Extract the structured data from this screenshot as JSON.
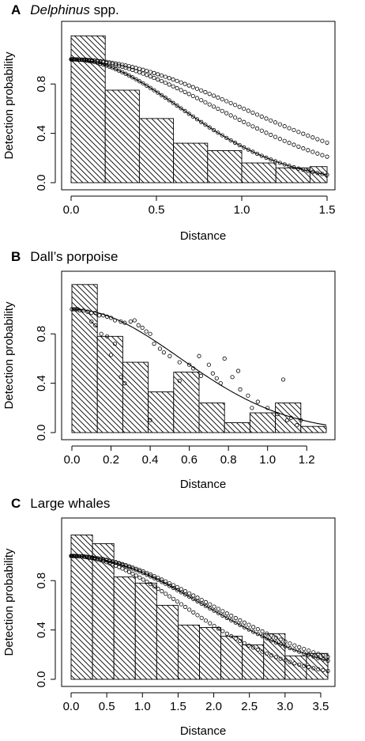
{
  "chart_data": [
    {
      "type": "bar",
      "panel_letter": "A",
      "title": "Delphinus spp.",
      "title_italic_part": "Delphinus",
      "title_rest": " spp.",
      "xlabel": "Distance",
      "ylabel": "Detection probability",
      "xlim": [
        0,
        1.5
      ],
      "ylim": [
        0,
        1.25
      ],
      "xticks": [
        0.0,
        0.5,
        1.0,
        1.5
      ],
      "xtick_labels": [
        "0.0",
        "0.5",
        "1.0",
        "1.5"
      ],
      "yticks": [
        0.0,
        0.4,
        0.8
      ],
      "ytick_labels": [
        "0.0",
        "0.4",
        "0.8"
      ],
      "grid": false,
      "histogram": {
        "bin_width": 0.2,
        "bins": [
          0,
          0.2,
          0.4,
          0.6,
          0.8,
          1.0,
          1.2,
          1.4,
          1.5
        ],
        "values": [
          1.19,
          0.75,
          0.52,
          0.32,
          0.26,
          0.16,
          0.12,
          0.13
        ]
      },
      "fitted_curve": {
        "shape": "half-normal",
        "sigma": 0.64
      },
      "points": {
        "x_max": 1.5,
        "upper_sigma": 1.0,
        "middle_sigma": 0.85,
        "lower_sigma": 0.64
      }
    },
    {
      "type": "bar",
      "panel_letter": "B",
      "title": "Dall’s porpoise",
      "xlabel": "Distance",
      "ylabel": "Detection probability",
      "xlim": [
        0,
        1.3
      ],
      "ylim": [
        0,
        1.25
      ],
      "xticks": [
        0.0,
        0.2,
        0.4,
        0.6,
        0.8,
        1.0,
        1.2
      ],
      "xtick_labels": [
        "0.0",
        "0.2",
        "0.4",
        "0.6",
        "0.8",
        "1.0",
        "1.2"
      ],
      "yticks": [
        0.0,
        0.4,
        0.8
      ],
      "ytick_labels": [
        "0.0",
        "0.4",
        "0.8"
      ],
      "grid": false,
      "histogram": {
        "bin_width": 0.13,
        "bins": [
          0,
          0.13,
          0.26,
          0.39,
          0.52,
          0.65,
          0.78,
          0.91,
          1.04,
          1.17,
          1.3
        ],
        "values": [
          1.2,
          0.78,
          0.57,
          0.33,
          0.49,
          0.24,
          0.08,
          0.16,
          0.24,
          0.05
        ]
      },
      "fitted_curve": {
        "shape": "half-normal",
        "sigma": 0.55
      },
      "points": [
        [
          0.0,
          1.0
        ],
        [
          0.01,
          1.0
        ],
        [
          0.02,
          1.0
        ],
        [
          0.03,
          1.0
        ],
        [
          0.04,
          0.99
        ],
        [
          0.06,
          0.99
        ],
        [
          0.08,
          0.98
        ],
        [
          0.1,
          0.97
        ],
        [
          0.12,
          0.97
        ],
        [
          0.14,
          0.95
        ],
        [
          0.16,
          0.95
        ],
        [
          0.18,
          0.94
        ],
        [
          0.2,
          0.93
        ],
        [
          0.22,
          0.91
        ],
        [
          0.25,
          0.9
        ],
        [
          0.27,
          0.89
        ],
        [
          0.3,
          0.9
        ],
        [
          0.32,
          0.91
        ],
        [
          0.34,
          0.87
        ],
        [
          0.36,
          0.85
        ],
        [
          0.38,
          0.82
        ],
        [
          0.4,
          0.8
        ],
        [
          0.1,
          0.9
        ],
        [
          0.12,
          0.87
        ],
        [
          0.15,
          0.8
        ],
        [
          0.18,
          0.78
        ],
        [
          0.22,
          0.72
        ],
        [
          0.25,
          0.45
        ],
        [
          0.27,
          0.4
        ],
        [
          0.2,
          0.63
        ],
        [
          0.42,
          0.72
        ],
        [
          0.45,
          0.68
        ],
        [
          0.47,
          0.65
        ],
        [
          0.5,
          0.62
        ],
        [
          0.55,
          0.57
        ],
        [
          0.6,
          0.55
        ],
        [
          0.62,
          0.52
        ],
        [
          0.66,
          0.46
        ],
        [
          0.7,
          0.55
        ],
        [
          0.72,
          0.48
        ],
        [
          0.74,
          0.44
        ],
        [
          0.76,
          0.4
        ],
        [
          0.78,
          0.6
        ],
        [
          0.82,
          0.45
        ],
        [
          0.86,
          0.35
        ],
        [
          0.9,
          0.3
        ],
        [
          0.95,
          0.25
        ],
        [
          1.0,
          0.2
        ],
        [
          1.05,
          0.15
        ],
        [
          1.1,
          0.1
        ],
        [
          1.15,
          0.06
        ],
        [
          0.4,
          0.1
        ],
        [
          0.55,
          0.42
        ],
        [
          0.65,
          0.62
        ],
        [
          0.85,
          0.5
        ],
        [
          1.08,
          0.43
        ],
        [
          1.12,
          0.12
        ],
        [
          1.17,
          0.1
        ],
        [
          0.92,
          0.2
        ]
      ]
    },
    {
      "type": "bar",
      "panel_letter": "C",
      "title": "Large whales",
      "xlabel": "Distance",
      "ylabel": "Detection probability",
      "xlim": [
        0,
        3.6
      ],
      "ylim": [
        0,
        1.25
      ],
      "xticks": [
        0.0,
        0.5,
        1.0,
        1.5,
        2.0,
        2.5,
        3.0,
        3.5
      ],
      "xtick_labels": [
        "0.0",
        "0.5",
        "1.0",
        "1.5",
        "2.0",
        "2.5",
        "3.0",
        "3.5"
      ],
      "yticks": [
        0.0,
        0.4,
        0.8
      ],
      "ytick_labels": [
        "0.0",
        "0.4",
        "0.8"
      ],
      "grid": false,
      "histogram": {
        "bin_width": 0.3,
        "bins": [
          0,
          0.3,
          0.6,
          0.9,
          1.2,
          1.5,
          1.8,
          2.1,
          2.4,
          2.7,
          3.0,
          3.3,
          3.6
        ],
        "values": [
          1.17,
          1.1,
          0.83,
          0.78,
          0.6,
          0.44,
          0.42,
          0.35,
          0.28,
          0.37,
          0.19,
          0.21
        ]
      },
      "fitted_curve": {
        "shape": "half-normal",
        "sigma": 1.85
      },
      "points": {
        "x_max": 3.6,
        "upper_sigma": 1.95,
        "middle_sigma": 1.85,
        "lower_sigma": 1.55
      }
    }
  ]
}
